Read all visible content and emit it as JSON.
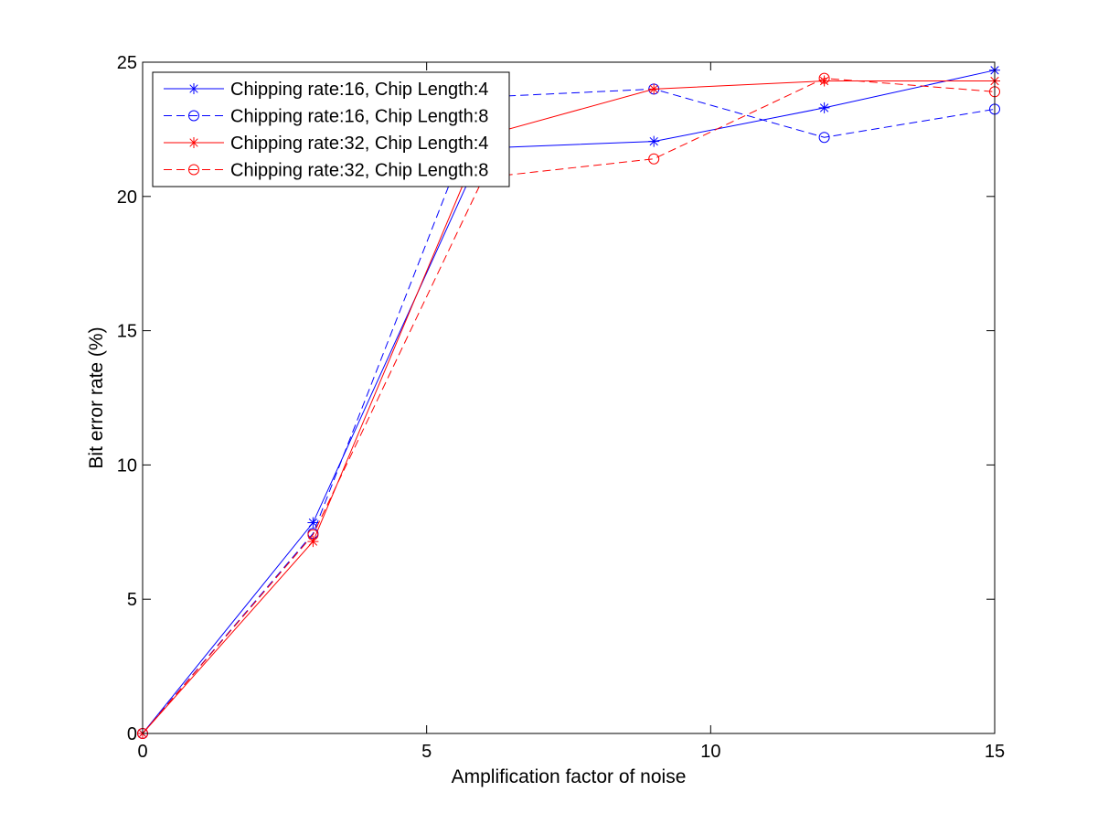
{
  "chart_data": {
    "type": "line",
    "title": "",
    "xlabel": "Amplification factor of noise",
    "ylabel": "Bit error rate (%)",
    "xlim": [
      0,
      15
    ],
    "ylim": [
      0,
      25
    ],
    "xticks": [
      0,
      5,
      10,
      15
    ],
    "yticks": [
      0,
      5,
      10,
      15,
      20,
      25
    ],
    "x": [
      0,
      3,
      6,
      9,
      12,
      15
    ],
    "grid": false,
    "legend_position": "top-left",
    "series": [
      {
        "name": "Chipping rate:16, Chip Length:4",
        "color": "#0000ff",
        "dash": "solid",
        "marker": "asterisk",
        "values": [
          0,
          7.85,
          21.8,
          22.05,
          23.3,
          24.7
        ]
      },
      {
        "name": "Chipping rate:16, Chip Length:8",
        "color": "#0000ff",
        "dash": "dashed",
        "marker": "circle",
        "values": [
          0,
          7.45,
          23.7,
          24.0,
          22.2,
          23.25
        ]
      },
      {
        "name": "Chipping rate:32, Chip Length:4",
        "color": "#ff0000",
        "dash": "solid",
        "marker": "asterisk",
        "values": [
          0,
          7.15,
          22.25,
          24.0,
          24.3,
          24.3
        ]
      },
      {
        "name": "Chipping rate:32, Chip Length:8",
        "color": "#ff0000",
        "dash": "dashed",
        "marker": "circle",
        "values": [
          0,
          7.4,
          20.7,
          21.4,
          24.4,
          23.9
        ]
      }
    ]
  }
}
